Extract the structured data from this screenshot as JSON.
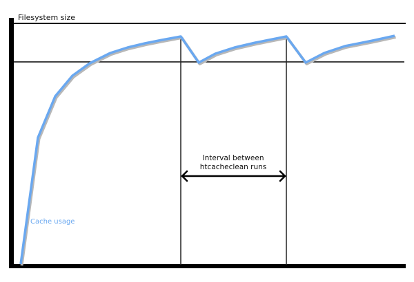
{
  "diagram": {
    "y_axis_label": "Filesystem size",
    "curve_label": "Cache usage",
    "interval_label_line1": "Interval between",
    "interval_label_line2": "htcacheclean runs",
    "colors": {
      "curve": "#6aa8f0",
      "curve_shadow": "#b0b0b0",
      "lines": "#000000"
    }
  }
}
